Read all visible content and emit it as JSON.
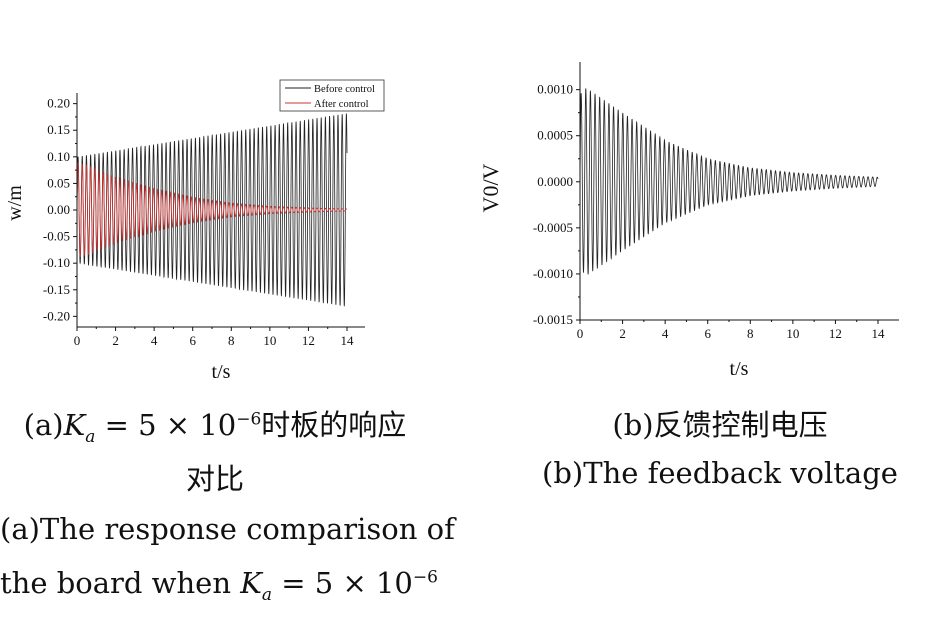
{
  "chart_data": [
    {
      "type": "line",
      "xlabel": "t/s",
      "ylabel": "w/m",
      "xlim": [
        0,
        14
      ],
      "ylim": [
        -0.22,
        0.22
      ],
      "xticks": [
        "0",
        "2",
        "4",
        "6",
        "8",
        "10",
        "12",
        "14"
      ],
      "yticks": [
        "-0.20",
        "-0.15",
        "-0.10",
        "-0.05",
        "0.00",
        "0.05",
        "0.10",
        "0.15",
        "0.20"
      ],
      "legend_position": "top-right",
      "series": [
        {
          "name": "Before control",
          "color": "#222222",
          "frequency_hz": 4.6,
          "envelope": {
            "t": [
              0,
              14
            ],
            "amplitude": [
              0.1,
              0.182
            ]
          }
        },
        {
          "name": "After control",
          "color": "#cc3333",
          "frequency_hz": 4.6,
          "envelope": {
            "t": [
              0,
              0.5,
              2,
              4,
              6,
              8,
              10,
              12,
              14
            ],
            "amplitude": [
              0.09,
              0.085,
              0.062,
              0.04,
              0.024,
              0.013,
              0.007,
              0.004,
              0.002
            ]
          }
        }
      ]
    },
    {
      "type": "line",
      "xlabel": "t/s",
      "ylabel": "V0/V",
      "xlim": [
        0,
        15
      ],
      "ylim": [
        -0.0015,
        0.0013
      ],
      "xticks": [
        "0",
        "2",
        "4",
        "6",
        "8",
        "10",
        "12",
        "14"
      ],
      "yticks": [
        "-0.0015",
        "-0.0010",
        "-0.0005",
        "0.0000",
        "0.0005",
        "0.0010"
      ],
      "series": [
        {
          "name": "",
          "color": "#222222",
          "frequency_hz": 4.6,
          "envelope": {
            "t": [
              0,
              0.3,
              2,
              4,
              6,
              8,
              10,
              12,
              14
            ],
            "amplitude": [
              0.00095,
              0.00102,
              0.00075,
              0.00045,
              0.00025,
              0.00015,
              0.0001,
              7e-05,
              5e-05
            ]
          }
        }
      ]
    }
  ],
  "captions": {
    "a_cn_1": "(a)",
    "a_cn_k": "K",
    "a_cn_sub": "a",
    "a_cn_2": " = 5 × 10",
    "a_cn_sup": "−6",
    "a_cn_3": "时板的响应",
    "a_cn_line2": "对比",
    "a_en_line1": "(a)The response comparison of",
    "a_en_2a": "the board when ",
    "a_en_k": "K",
    "a_en_sub": "a",
    "a_en_2b": " = 5 × 10",
    "a_en_sup": "−6",
    "b_cn": "(b)反馈控制电压",
    "b_en": "(b)The feedback voltage"
  }
}
